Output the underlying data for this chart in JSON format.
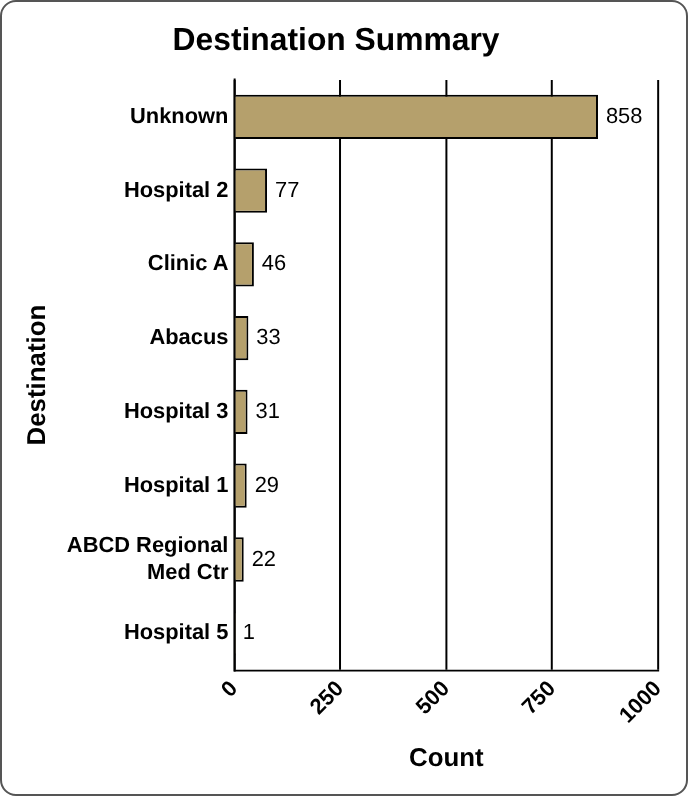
{
  "chart_data": {
    "type": "bar",
    "orientation": "horizontal",
    "title": "Destination Summary",
    "xlabel": "Count",
    "ylabel": "Destination",
    "categories": [
      "Unknown",
      "Hospital 2",
      "Clinic A",
      "Abacus",
      "Hospital 3",
      "Hospital 1",
      "ABCD Regional Med Ctr",
      "Hospital 5"
    ],
    "values": [
      858,
      77,
      46,
      33,
      31,
      29,
      22,
      1
    ],
    "color": "#b5a06c",
    "xlim": [
      0,
      1000
    ],
    "xticks": [
      0,
      250,
      500,
      750,
      1000
    ],
    "grid": "x",
    "data_labels": true,
    "legend": false
  }
}
